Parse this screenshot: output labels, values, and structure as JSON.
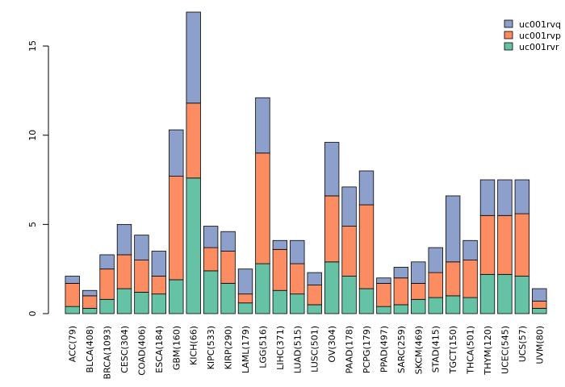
{
  "chart_data": {
    "type": "bar",
    "stacked": true,
    "title": "",
    "xlabel": "",
    "ylabel": "",
    "ylim": [
      0,
      16.9
    ],
    "yticks": [
      0,
      5,
      10,
      15
    ],
    "categories": [
      "ACC(79)",
      "BLCA(408)",
      "BRCA(1093)",
      "CESC(304)",
      "COAD(406)",
      "ESCA(184)",
      "GBM(160)",
      "KICH(66)",
      "KIPC(533)",
      "KIRP(290)",
      "LAML(179)",
      "LGG(516)",
      "LIHC(371)",
      "LUAD(515)",
      "LUSC(501)",
      "OV(304)",
      "PAAD(178)",
      "PCPG(179)",
      "PPAD(497)",
      "SARC(259)",
      "SKCM(469)",
      "STAD(415)",
      "TGCT(150)",
      "THCA(501)",
      "THYM(120)",
      "UCEC(545)",
      "UCS(57)",
      "UVM(80)"
    ],
    "series": [
      {
        "name": "uc001rvr",
        "color": "#66c2a5",
        "values": [
          0.4,
          0.3,
          0.8,
          1.4,
          1.2,
          1.1,
          1.9,
          7.6,
          2.4,
          1.7,
          0.6,
          2.8,
          1.3,
          1.1,
          0.5,
          2.9,
          2.1,
          1.4,
          0.4,
          0.5,
          0.8,
          0.9,
          1.0,
          0.9,
          2.2,
          2.2,
          2.1,
          0.3
        ]
      },
      {
        "name": "uc001rvp",
        "color": "#fc8d62",
        "values": [
          1.3,
          0.7,
          1.7,
          1.9,
          1.8,
          1.0,
          5.8,
          4.2,
          1.3,
          1.8,
          0.5,
          6.2,
          2.3,
          1.7,
          1.1,
          3.7,
          2.8,
          4.7,
          1.3,
          1.5,
          0.9,
          1.4,
          1.9,
          2.1,
          3.3,
          3.3,
          3.5,
          0.4
        ]
      },
      {
        "name": "uc001rvq",
        "color": "#8da0cb",
        "values": [
          0.4,
          0.3,
          0.8,
          1.7,
          1.4,
          1.4,
          2.6,
          5.1,
          1.2,
          1.1,
          1.4,
          3.1,
          0.5,
          1.3,
          0.7,
          3.0,
          2.2,
          1.9,
          0.3,
          0.6,
          1.2,
          1.4,
          3.7,
          1.1,
          2.0,
          2.0,
          1.9,
          0.7
        ]
      }
    ],
    "legend": {
      "position": "top-right",
      "entries": [
        "uc001rvq",
        "uc001rvp",
        "uc001rvr"
      ]
    },
    "grid": false
  }
}
